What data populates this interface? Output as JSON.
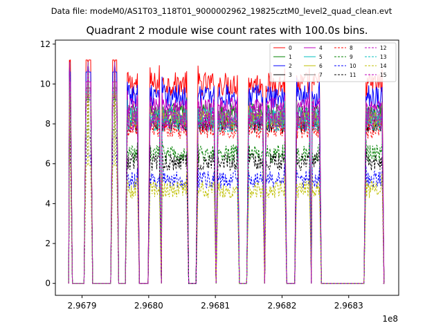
{
  "suptitle": "Data file: modeM0/AS1T03_118T01_9000002962_19825cztM0_level2_quad_clean.evt",
  "chart_data": {
    "type": "line",
    "title": "Quadrant 2 module wise count rates with 100.0s bins.",
    "xlabel": "",
    "ylabel": "",
    "x_offset_label": "1e8",
    "xlim": [
      296786000,
      296837500
    ],
    "ylim": [
      -0.6,
      12.2
    ],
    "x_ticks": [
      {
        "value": 296790000,
        "label": "2.9679"
      },
      {
        "value": 296800000,
        "label": "2.9680"
      },
      {
        "value": 296810000,
        "label": "2.9681"
      },
      {
        "value": 296820000,
        "label": "2.9682"
      },
      {
        "value": 296830000,
        "label": "2.9683"
      }
    ],
    "y_ticks": [
      {
        "value": 0,
        "label": "0"
      },
      {
        "value": 2,
        "label": "2"
      },
      {
        "value": 4,
        "label": "4"
      },
      {
        "value": 6,
        "label": "6"
      },
      {
        "value": 8,
        "label": "8"
      },
      {
        "value": 10,
        "label": "10"
      },
      {
        "value": 12,
        "label": "12"
      }
    ],
    "segments": [
      [
        296788100,
        296788250
      ],
      [
        296790600,
        296791300
      ],
      [
        296794600,
        296795200
      ],
      [
        296796800,
        296798300
      ],
      [
        296800200,
        296801600
      ],
      [
        296802000,
        296805700
      ],
      [
        296807400,
        296809800
      ],
      [
        296810400,
        296813300
      ],
      [
        296815000,
        296817100
      ],
      [
        296817600,
        296820400
      ],
      [
        296822200,
        296824100
      ],
      [
        296824500,
        296825600
      ],
      [
        296832600,
        296835000
      ]
    ],
    "legend_position": "top-right",
    "series": [
      {
        "name": "0",
        "color": "#ff0000",
        "dash": "solid",
        "level": 10.0
      },
      {
        "name": "1",
        "color": "#008000",
        "dash": "solid",
        "level": 8.6
      },
      {
        "name": "2",
        "color": "#0000ff",
        "dash": "solid",
        "level": 9.4
      },
      {
        "name": "3",
        "color": "#000000",
        "dash": "solid",
        "level": 8.0
      },
      {
        "name": "4",
        "color": "#bf00bf",
        "dash": "solid",
        "level": 8.9
      },
      {
        "name": "5",
        "color": "#00bfbf",
        "dash": "solid",
        "level": 8.4
      },
      {
        "name": "6",
        "color": "#bfbf00",
        "dash": "solid",
        "level": 8.2
      },
      {
        "name": "7",
        "color": "#808080",
        "dash": "solid",
        "level": 8.3
      },
      {
        "name": "8",
        "color": "#ff0000",
        "dash": "dashed",
        "level": 7.7
      },
      {
        "name": "9",
        "color": "#008000",
        "dash": "dashed",
        "level": 6.5
      },
      {
        "name": "10",
        "color": "#0000ff",
        "dash": "dashed",
        "level": 5.2
      },
      {
        "name": "11",
        "color": "#000000",
        "dash": "dashed",
        "level": 6.1
      },
      {
        "name": "12",
        "color": "#bf00bf",
        "dash": "dashed",
        "level": 8.5
      },
      {
        "name": "13",
        "color": "#00bfbf",
        "dash": "dashed",
        "level": 8.0
      },
      {
        "name": "14",
        "color": "#bfbf00",
        "dash": "dashed",
        "level": 4.7
      },
      {
        "name": "15",
        "color": "#bf00bf",
        "dash": "dashed",
        "level": 8.1
      }
    ]
  }
}
